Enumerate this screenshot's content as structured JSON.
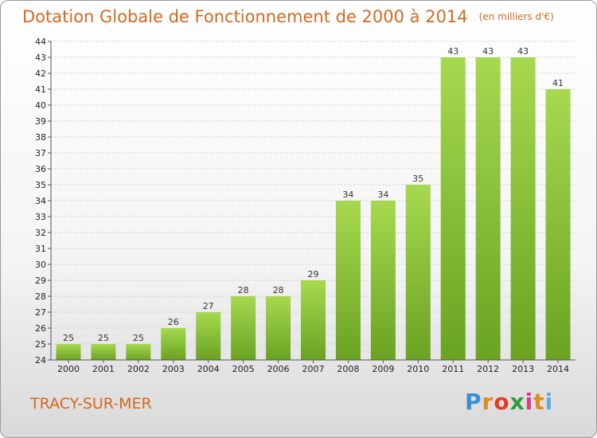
{
  "title": "Dotation Globale de Fonctionnement de 2000 à 2014",
  "unit": "(en milliers d'€)",
  "place": "TRACY-SUR-MER",
  "logo": {
    "letters": [
      "P",
      "r",
      "o",
      "x",
      "i",
      "t",
      "i"
    ],
    "colors": [
      "#3b8ed6",
      "#e08a1e",
      "#e23c28",
      "#2e9e3a",
      "#d93a8a",
      "#e08a1e",
      "#5bb0e0"
    ]
  },
  "colors": {
    "bar": "#8cc63f",
    "bar_light": "#a6d94f",
    "bar_dark": "#6aa222",
    "title": "#d2691e"
  },
  "chart_data": {
    "type": "bar",
    "categories": [
      "2000",
      "2001",
      "2002",
      "2003",
      "2004",
      "2005",
      "2006",
      "2007",
      "2008",
      "2009",
      "2010",
      "2011",
      "2012",
      "2013",
      "2014"
    ],
    "values": [
      25,
      25,
      25,
      26,
      27,
      28,
      28,
      29,
      34,
      34,
      35,
      43,
      43,
      43,
      41
    ],
    "ylim": [
      24,
      44
    ],
    "yticks": [
      24,
      25,
      26,
      27,
      28,
      29,
      30,
      31,
      32,
      33,
      34,
      35,
      36,
      37,
      38,
      39,
      40,
      41,
      42,
      43,
      44
    ],
    "grid": "horizontal, dashed",
    "legend": "none"
  }
}
